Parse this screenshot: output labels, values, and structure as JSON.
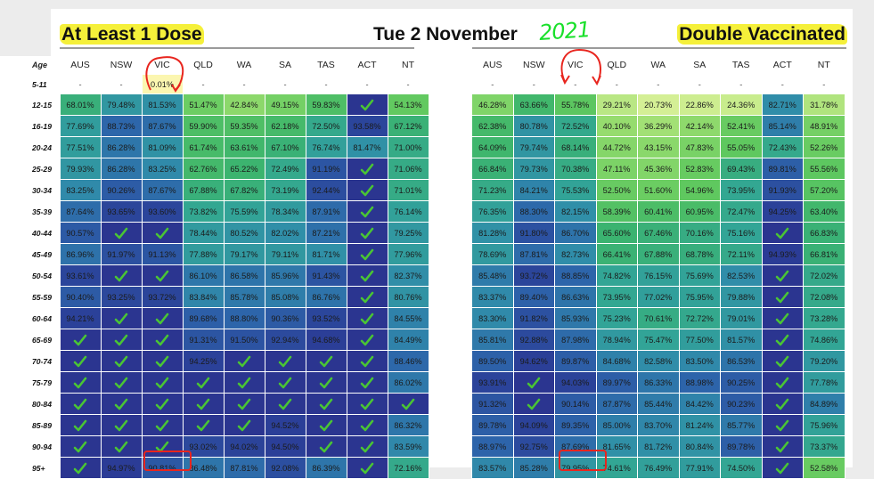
{
  "header": {
    "left_title": "At Least 1 Dose",
    "date": "Tue 2 November",
    "year_handwritten": "2021",
    "right_title": "Double Vaccinated"
  },
  "chart_data": [
    {
      "type": "table",
      "title": "At Least 1 Dose",
      "columns": [
        "AUS",
        "NSW",
        "VIC",
        "QLD",
        "WA",
        "SA",
        "TAS",
        "ACT",
        "NT"
      ],
      "row_header": "Age",
      "rows": [
        {
          "age": "5-11",
          "values": [
            "-",
            "-",
            "0.01%",
            "-",
            "-",
            "-",
            "-",
            "-",
            "-"
          ]
        },
        {
          "age": "12-15",
          "values": [
            "68.01%",
            "79.48%",
            "81.53%",
            "51.47%",
            "42.84%",
            "49.15%",
            "59.83%",
            "✓",
            "54.13%"
          ]
        },
        {
          "age": "16-19",
          "values": [
            "77.69%",
            "88.73%",
            "87.67%",
            "59.90%",
            "59.35%",
            "62.18%",
            "72.50%",
            "93.58%",
            "67.12%"
          ]
        },
        {
          "age": "20-24",
          "values": [
            "77.51%",
            "86.28%",
            "81.09%",
            "61.74%",
            "63.61%",
            "67.10%",
            "76.74%",
            "81.47%",
            "71.00%"
          ]
        },
        {
          "age": "25-29",
          "values": [
            "79.93%",
            "86.28%",
            "83.25%",
            "62.76%",
            "65.22%",
            "72.49%",
            "91.19%",
            "✓",
            "71.06%"
          ]
        },
        {
          "age": "30-34",
          "values": [
            "83.25%",
            "90.26%",
            "87.67%",
            "67.88%",
            "67.82%",
            "73.19%",
            "92.44%",
            "✓",
            "71.01%"
          ]
        },
        {
          "age": "35-39",
          "values": [
            "87.64%",
            "93.65%",
            "93.60%",
            "73.82%",
            "75.59%",
            "78.34%",
            "87.91%",
            "✓",
            "76.14%"
          ]
        },
        {
          "age": "40-44",
          "values": [
            "90.57%",
            "✓",
            "✓",
            "78.44%",
            "80.52%",
            "82.02%",
            "87.21%",
            "✓",
            "79.25%"
          ]
        },
        {
          "age": "45-49",
          "values": [
            "86.96%",
            "91.97%",
            "91.13%",
            "77.88%",
            "79.17%",
            "79.11%",
            "81.71%",
            "✓",
            "77.96%"
          ]
        },
        {
          "age": "50-54",
          "values": [
            "93.61%",
            "✓",
            "✓",
            "86.10%",
            "86.58%",
            "85.96%",
            "91.43%",
            "✓",
            "82.37%"
          ]
        },
        {
          "age": "55-59",
          "values": [
            "90.40%",
            "93.25%",
            "93.72%",
            "83.84%",
            "85.78%",
            "85.08%",
            "86.76%",
            "✓",
            "80.76%"
          ]
        },
        {
          "age": "60-64",
          "values": [
            "94.21%",
            "✓",
            "✓",
            "89.68%",
            "88.80%",
            "90.36%",
            "93.52%",
            "✓",
            "84.55%"
          ]
        },
        {
          "age": "65-69",
          "values": [
            "✓",
            "✓",
            "✓",
            "91.31%",
            "91.50%",
            "92.94%",
            "94.68%",
            "✓",
            "84.49%"
          ]
        },
        {
          "age": "70-74",
          "values": [
            "✓",
            "✓",
            "✓",
            "94.25%",
            "✓",
            "✓",
            "✓",
            "✓",
            "88.46%"
          ]
        },
        {
          "age": "75-79",
          "values": [
            "✓",
            "✓",
            "✓",
            "✓",
            "✓",
            "✓",
            "✓",
            "✓",
            "86.02%"
          ]
        },
        {
          "age": "80-84",
          "values": [
            "✓",
            "✓",
            "✓",
            "✓",
            "✓",
            "✓",
            "✓",
            "✓",
            "✓"
          ]
        },
        {
          "age": "85-89",
          "values": [
            "✓",
            "✓",
            "✓",
            "✓",
            "✓",
            "94.52%",
            "✓",
            "✓",
            "86.32%"
          ]
        },
        {
          "age": "90-94",
          "values": [
            "✓",
            "✓",
            "✓",
            "93.02%",
            "94.02%",
            "94.50%",
            "✓",
            "✓",
            "83.59%"
          ]
        },
        {
          "age": "95+",
          "values": [
            "✓",
            "94.97%",
            "90.81%",
            "86.48%",
            "87.81%",
            "92.08%",
            "86.39%",
            "✓",
            "72.16%"
          ]
        }
      ]
    },
    {
      "type": "table",
      "title": "Double Vaccinated",
      "columns": [
        "AUS",
        "NSW",
        "VIC",
        "QLD",
        "WA",
        "SA",
        "TAS",
        "ACT",
        "NT"
      ],
      "rows": [
        {
          "age": "5-11",
          "values": [
            "-",
            "-",
            "-",
            "-",
            "-",
            "-",
            "-",
            "-",
            "-"
          ]
        },
        {
          "age": "12-15",
          "values": [
            "46.28%",
            "63.66%",
            "55.78%",
            "29.21%",
            "20.73%",
            "22.86%",
            "24.36%",
            "82.71%",
            "31.78%"
          ]
        },
        {
          "age": "16-19",
          "values": [
            "62.38%",
            "80.78%",
            "72.52%",
            "40.10%",
            "36.29%",
            "42.14%",
            "52.41%",
            "85.14%",
            "48.91%"
          ]
        },
        {
          "age": "20-24",
          "values": [
            "64.09%",
            "79.74%",
            "68.14%",
            "44.72%",
            "43.15%",
            "47.83%",
            "55.05%",
            "72.43%",
            "52.26%"
          ]
        },
        {
          "age": "25-29",
          "values": [
            "66.84%",
            "79.73%",
            "70.38%",
            "47.11%",
            "45.36%",
            "52.83%",
            "69.43%",
            "89.81%",
            "55.56%"
          ]
        },
        {
          "age": "30-34",
          "values": [
            "71.23%",
            "84.21%",
            "75.53%",
            "52.50%",
            "51.60%",
            "54.96%",
            "73.95%",
            "91.93%",
            "57.20%"
          ]
        },
        {
          "age": "35-39",
          "values": [
            "76.35%",
            "88.30%",
            "82.15%",
            "58.39%",
            "60.41%",
            "60.95%",
            "72.47%",
            "94.25%",
            "63.40%"
          ]
        },
        {
          "age": "40-44",
          "values": [
            "81.28%",
            "91.80%",
            "86.70%",
            "65.60%",
            "67.46%",
            "70.16%",
            "75.16%",
            "✓",
            "66.83%"
          ]
        },
        {
          "age": "45-49",
          "values": [
            "78.69%",
            "87.81%",
            "82.73%",
            "66.41%",
            "67.88%",
            "68.78%",
            "72.11%",
            "94.93%",
            "66.81%"
          ]
        },
        {
          "age": "50-54",
          "values": [
            "85.48%",
            "93.72%",
            "88.85%",
            "74.82%",
            "76.15%",
            "75.69%",
            "82.53%",
            "✓",
            "72.02%"
          ]
        },
        {
          "age": "55-59",
          "values": [
            "83.37%",
            "89.40%",
            "86.63%",
            "73.95%",
            "77.02%",
            "75.95%",
            "79.88%",
            "✓",
            "72.08%"
          ]
        },
        {
          "age": "60-64",
          "values": [
            "83.30%",
            "91.82%",
            "85.93%",
            "75.23%",
            "70.61%",
            "72.72%",
            "79.01%",
            "✓",
            "73.28%"
          ]
        },
        {
          "age": "65-69",
          "values": [
            "85.81%",
            "92.88%",
            "87.98%",
            "78.94%",
            "75.47%",
            "77.50%",
            "81.57%",
            "✓",
            "74.86%"
          ]
        },
        {
          "age": "70-74",
          "values": [
            "89.50%",
            "94.62%",
            "89.87%",
            "84.68%",
            "82.58%",
            "83.50%",
            "86.53%",
            "✓",
            "79.20%"
          ]
        },
        {
          "age": "75-79",
          "values": [
            "93.91%",
            "✓",
            "94.03%",
            "89.97%",
            "86.33%",
            "88.98%",
            "90.25%",
            "✓",
            "77.78%"
          ]
        },
        {
          "age": "80-84",
          "values": [
            "91.32%",
            "✓",
            "90.14%",
            "87.87%",
            "85.44%",
            "84.42%",
            "90.23%",
            "✓",
            "84.89%"
          ]
        },
        {
          "age": "85-89",
          "values": [
            "89.78%",
            "94.09%",
            "89.35%",
            "85.00%",
            "83.70%",
            "81.24%",
            "85.77%",
            "✓",
            "75.96%"
          ]
        },
        {
          "age": "90-94",
          "values": [
            "88.97%",
            "92.75%",
            "87.69%",
            "81.65%",
            "81.72%",
            "80.84%",
            "89.78%",
            "✓",
            "73.37%"
          ]
        },
        {
          "age": "95+",
          "values": [
            "83.57%",
            "85.28%",
            "79.95%",
            "74.61%",
            "76.49%",
            "77.91%",
            "74.50%",
            "✓",
            "52.58%"
          ]
        }
      ]
    }
  ],
  "colors": {
    "highlight": "#f5f03a",
    "year_text": "#19e02a",
    "annotation": "#e8251e",
    "complete_cell": "#2b3590",
    "tick": "#4ac534"
  }
}
